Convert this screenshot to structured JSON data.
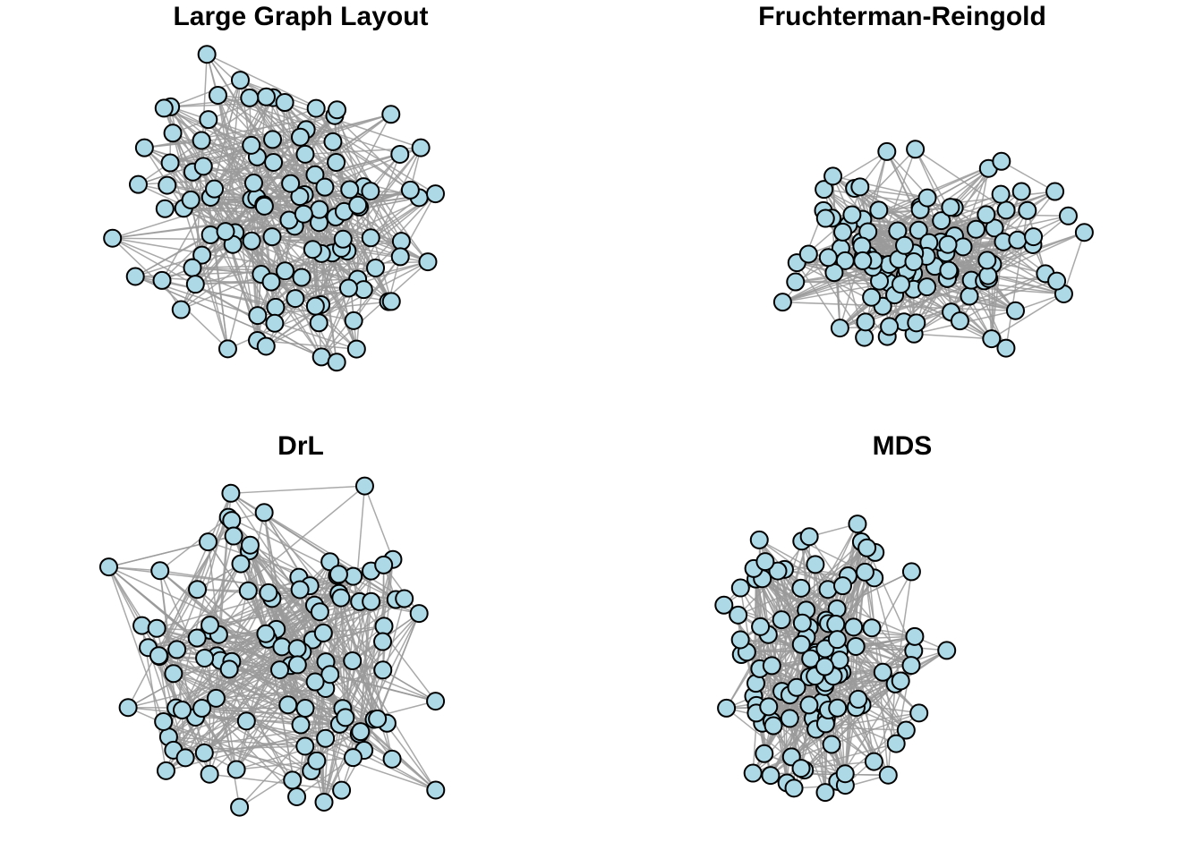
{
  "panels": [
    {
      "title": "Large Graph Layout"
    },
    {
      "title": "Fruchterman-Reingold"
    },
    {
      "title": "DrL"
    },
    {
      "title": "MDS"
    }
  ]
}
